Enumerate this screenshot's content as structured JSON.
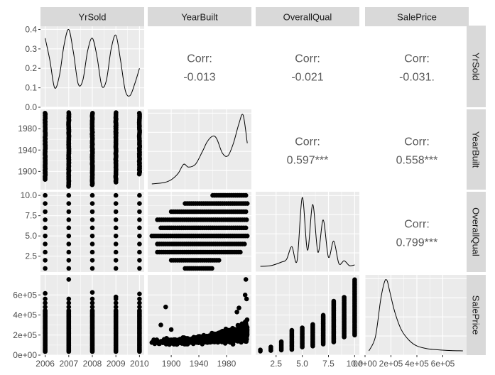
{
  "chart_data": {
    "type": "scatterplot-matrix",
    "variables": [
      "YrSold",
      "YearBuilt",
      "OverallQual",
      "SalePrice"
    ],
    "colors": {
      "panel_bg": "#ebebeb",
      "grid": "#ffffff",
      "strip_bg": "#d9d9d9",
      "points": "#000000",
      "corr_text": "#595959"
    },
    "axes": {
      "YrSold": {
        "range": [
          2005.8,
          2010.2
        ],
        "ticks": [
          2006,
          2007,
          2008,
          2009,
          2010
        ],
        "tick_labels": [
          "2006",
          "2007",
          "2008",
          "2009",
          "2010"
        ]
      },
      "YearBuilt": {
        "range": [
          1866,
          2016
        ],
        "ticks": [
          1900,
          1940,
          1980
        ],
        "tick_labels": [
          "1900",
          "1940",
          "1980"
        ]
      },
      "OverallQual": {
        "range": [
          0.55,
          10.45
        ],
        "ticks": [
          2.5,
          5.0,
          7.5,
          10.0
        ],
        "tick_labels": [
          "2.5",
          "5.0",
          "7.5",
          "10.0"
        ]
      },
      "SalePrice": {
        "range": [
          0,
          800000
        ],
        "ticks": [
          0,
          200000,
          400000,
          600000
        ],
        "tick_labels": [
          "0e+00",
          "2e+05",
          "4e+05",
          "6e+05"
        ]
      }
    },
    "bottom_axis_labels": {
      "YrSold": [
        "2006",
        "2007",
        "2008",
        "2009",
        "2010"
      ],
      "YearBuilt": [
        "1900",
        "1940",
        "1980"
      ],
      "OverallQual": [
        "2.5",
        "5.0",
        "7.5",
        "10.0"
      ],
      "SalePrice": [
        "0e+00",
        "2e+05",
        "4e+05",
        "6e+05"
      ],
      "SalePrice_printed": [
        "0e+00",
        "2e+05",
        "4e+05",
        "6e+05"
      ]
    },
    "density_axis": {
      "range": [
        0,
        0.42
      ],
      "ticks": [
        0.0,
        0.1,
        0.2,
        0.3,
        0.4
      ],
      "tick_labels": [
        "0.0",
        "0.1",
        "0.2",
        "0.3",
        "0.4"
      ]
    },
    "correlations": [
      {
        "row": "YrSold",
        "col": "YearBuilt",
        "label": "Corr:",
        "value": "-0.013"
      },
      {
        "row": "YrSold",
        "col": "OverallQual",
        "label": "Corr:",
        "value": "-0.021"
      },
      {
        "row": "YrSold",
        "col": "SalePrice",
        "label": "Corr:",
        "value": "-0.031."
      },
      {
        "row": "YearBuilt",
        "col": "OverallQual",
        "label": "Corr:",
        "value": "0.597***"
      },
      {
        "row": "YearBuilt",
        "col": "SalePrice",
        "label": "Corr:",
        "value": "0.558***"
      },
      {
        "row": "OverallQual",
        "col": "SalePrice",
        "label": "Corr:",
        "value": "0.799***"
      }
    ],
    "densities": {
      "YrSold": {
        "x": [
          2006.0,
          2006.2,
          2006.4,
          2006.6,
          2006.8,
          2007.0,
          2007.2,
          2007.4,
          2007.6,
          2007.8,
          2008.0,
          2008.2,
          2008.4,
          2008.6,
          2008.8,
          2009.0,
          2009.2,
          2009.4,
          2009.6,
          2009.8,
          2010.0
        ],
        "y": [
          0.355,
          0.24,
          0.1,
          0.16,
          0.32,
          0.4,
          0.28,
          0.12,
          0.14,
          0.29,
          0.355,
          0.26,
          0.11,
          0.14,
          0.3,
          0.37,
          0.24,
          0.085,
          0.06,
          0.12,
          0.2
        ]
      },
      "YearBuilt": {
        "x": [
          1872,
          1890,
          1900,
          1910,
          1918,
          1925,
          1935,
          1945,
          1952,
          1960,
          1966,
          1974,
          1982,
          1990,
          1998,
          2004,
          2010
        ],
        "y": [
          0.02,
          0.04,
          0.08,
          0.17,
          0.3,
          0.26,
          0.3,
          0.48,
          0.62,
          0.7,
          0.66,
          0.46,
          0.42,
          0.6,
          0.88,
          1.0,
          0.6
        ]
      },
      "OverallQual": {
        "x": [
          1.0,
          2.0,
          3.0,
          3.5,
          4.0,
          4.5,
          5.0,
          5.5,
          6.0,
          6.5,
          7.0,
          7.5,
          8.0,
          8.5,
          9.0,
          9.5,
          10.0
        ],
        "y": [
          0.02,
          0.03,
          0.08,
          0.12,
          0.3,
          0.1,
          1.0,
          0.25,
          0.9,
          0.22,
          0.68,
          0.15,
          0.38,
          0.06,
          0.1,
          0.03,
          0.04
        ]
      },
      "SalePrice": {
        "x": [
          30000,
          80000,
          120000,
          150000,
          170000,
          190000,
          230000,
          280000,
          340000,
          400000,
          480000,
          560000,
          650000,
          755000
        ],
        "y": [
          0.0,
          0.2,
          0.72,
          0.98,
          1.0,
          0.85,
          0.55,
          0.3,
          0.15,
          0.07,
          0.03,
          0.015,
          0.005,
          0.0
        ]
      }
    },
    "scatter": {
      "YearBuilt_vs_YrSold": {
        "yrsold_levels": [
          2006,
          2007,
          2008,
          2009,
          2010
        ],
        "yearbuilt_low": [
          1885,
          1872,
          1875,
          1880,
          1895
        ],
        "yearbuilt_high": 2010
      },
      "OverallQual_vs_YrSold": {
        "yrsold_levels": [
          2006,
          2007,
          2008,
          2009,
          2010
        ],
        "qual_levels": [
          1,
          2,
          3,
          4,
          5,
          6,
          7,
          8,
          9,
          10
        ]
      },
      "SalePrice_vs_YrSold": {
        "yrsold_levels": [
          2006,
          2007,
          2008,
          2009,
          2010
        ],
        "price_low": 35000,
        "price_high": [
          615000,
          755000,
          625000,
          580000,
          610000
        ]
      },
      "OverallQual_vs_YearBuilt": {
        "qual_levels": [
          1,
          2,
          3,
          4,
          5,
          6,
          7,
          8,
          9,
          10
        ],
        "yearbuilt_min": [
          1920,
          1900,
          1880,
          1880,
          1872,
          1885,
          1880,
          1900,
          1920,
          1960
        ],
        "yearbuilt_max": [
          1960,
          1970,
          2000,
          2008,
          2010,
          2010,
          2010,
          2010,
          2010,
          2010
        ]
      },
      "SalePrice_vs_YearBuilt": {
        "price_at_1880": 130000,
        "price_at_2010": 230000,
        "outliers": [
          [
            1892,
            480000
          ],
          [
            1885,
            300000
          ],
          [
            1872,
            125000
          ],
          [
            1900,
            255000
          ],
          [
            2007,
            600000
          ],
          [
            2008,
            755000
          ],
          [
            2009,
            560000
          ],
          [
            1995,
            430000
          ],
          [
            1998,
            470000
          ]
        ]
      },
      "SalePrice_vs_OverallQual": {
        "qual_levels": [
          1,
          2,
          3,
          4,
          5,
          6,
          7,
          8,
          9,
          10
        ],
        "price_min": [
          40000,
          45000,
          50000,
          55000,
          80000,
          90000,
          110000,
          130000,
          180000,
          200000
        ],
        "price_max": [
          60000,
          90000,
          140000,
          250000,
          280000,
          310000,
          400000,
          540000,
          580000,
          755000
        ]
      }
    }
  }
}
